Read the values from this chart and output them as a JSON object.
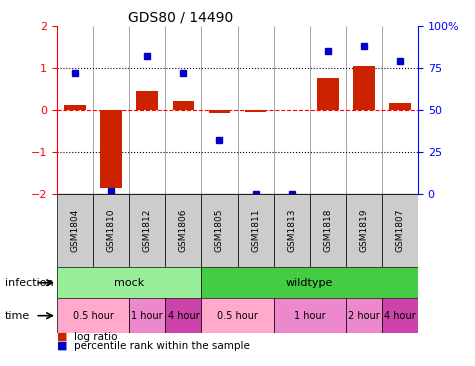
{
  "title": "GDS80 / 14490",
  "samples": [
    "GSM1804",
    "GSM1810",
    "GSM1812",
    "GSM1806",
    "GSM1805",
    "GSM1811",
    "GSM1813",
    "GSM1818",
    "GSM1819",
    "GSM1807"
  ],
  "log_ratio": [
    0.12,
    -1.85,
    0.45,
    0.22,
    -0.08,
    -0.05,
    0.0,
    0.75,
    1.05,
    0.15
  ],
  "percentile": [
    72,
    2,
    82,
    72,
    32,
    0,
    0,
    85,
    88,
    79
  ],
  "ylim_left": [
    -2,
    2
  ],
  "ylim_right": [
    0,
    100
  ],
  "yticks_left": [
    -2,
    -1,
    0,
    1,
    2
  ],
  "yticks_right": [
    0,
    25,
    50,
    75,
    100
  ],
  "ytick_labels_right": [
    "0",
    "25",
    "50",
    "75",
    "100%"
  ],
  "bar_color": "#cc2200",
  "dot_color": "#0000cc",
  "sample_box_color": "#cccccc",
  "infection_groups": [
    {
      "label": "mock",
      "start": 0,
      "end": 4,
      "color": "#99ee99"
    },
    {
      "label": "wildtype",
      "start": 4,
      "end": 10,
      "color": "#44cc44"
    }
  ],
  "time_groups": [
    {
      "label": "0.5 hour",
      "start": 0,
      "end": 2,
      "color": "#ffaacc"
    },
    {
      "label": "1 hour",
      "start": 2,
      "end": 3,
      "color": "#ee88cc"
    },
    {
      "label": "4 hour",
      "start": 3,
      "end": 4,
      "color": "#cc44aa"
    },
    {
      "label": "0.5 hour",
      "start": 4,
      "end": 6,
      "color": "#ffaacc"
    },
    {
      "label": "1 hour",
      "start": 6,
      "end": 8,
      "color": "#ee88cc"
    },
    {
      "label": "2 hour",
      "start": 8,
      "end": 9,
      "color": "#ee88cc"
    },
    {
      "label": "4 hour",
      "start": 9,
      "end": 10,
      "color": "#cc44aa"
    }
  ],
  "legend_items": [
    {
      "label": "log ratio",
      "color": "#cc2200"
    },
    {
      "label": "percentile rank within the sample",
      "color": "#0000cc"
    }
  ],
  "infection_label": "infection",
  "time_label": "time"
}
